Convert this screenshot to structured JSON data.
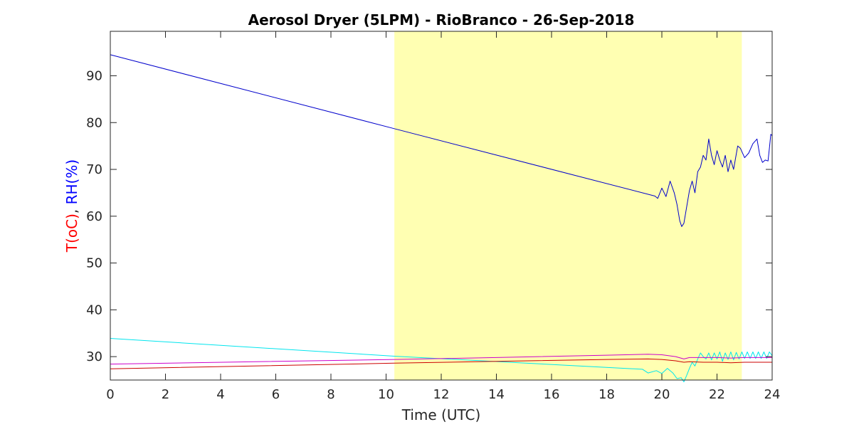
{
  "chart_data": {
    "type": "line",
    "title": "Aerosol Dryer (5LPM) - RioBranco - 26-Sep-2018",
    "xlabel": "Time (UTC)",
    "ylabel_parts": [
      {
        "text": "T(oC)",
        "color": "#ff0000"
      },
      {
        "text": ", ",
        "color": "#262626"
      },
      {
        "text": "RH(%)",
        "color": "#0000ff"
      }
    ],
    "xlim": [
      0,
      24
    ],
    "ylim": [
      25,
      99.5
    ],
    "xticks": [
      0,
      2,
      4,
      6,
      8,
      10,
      12,
      14,
      16,
      18,
      20,
      22,
      24
    ],
    "yticks": [
      30,
      40,
      50,
      60,
      70,
      80,
      90
    ],
    "grid": false,
    "highlight": {
      "x_start": 10.3,
      "x_end": 22.9,
      "color": "#ffffb2"
    },
    "series": [
      {
        "color": "#0000cc",
        "points": [
          [
            0.0,
            94.5
          ],
          [
            10.3,
            78.7
          ],
          [
            19.75,
            64.3
          ],
          [
            19.85,
            63.8
          ],
          [
            20.0,
            66.0
          ],
          [
            20.15,
            64.2
          ],
          [
            20.3,
            67.5
          ],
          [
            20.45,
            65.0
          ],
          [
            20.55,
            62.5
          ],
          [
            20.65,
            59.0
          ],
          [
            20.72,
            57.8
          ],
          [
            20.8,
            58.5
          ],
          [
            20.9,
            62.0
          ],
          [
            21.0,
            65.5
          ],
          [
            21.1,
            67.5
          ],
          [
            21.2,
            65.0
          ],
          [
            21.3,
            69.5
          ],
          [
            21.4,
            70.5
          ],
          [
            21.5,
            73.0
          ],
          [
            21.6,
            72.0
          ],
          [
            21.7,
            76.5
          ],
          [
            21.8,
            73.0
          ],
          [
            21.9,
            71.0
          ],
          [
            22.0,
            74.0
          ],
          [
            22.1,
            72.0
          ],
          [
            22.2,
            70.5
          ],
          [
            22.3,
            73.0
          ],
          [
            22.4,
            69.5
          ],
          [
            22.5,
            72.0
          ],
          [
            22.6,
            70.0
          ],
          [
            22.75,
            75.0
          ],
          [
            22.85,
            74.5
          ],
          [
            23.0,
            72.5
          ],
          [
            23.15,
            73.5
          ],
          [
            23.3,
            75.5
          ],
          [
            23.45,
            76.5
          ],
          [
            23.55,
            73.0
          ],
          [
            23.65,
            71.5
          ],
          [
            23.75,
            72.0
          ],
          [
            23.85,
            71.8
          ],
          [
            23.9,
            74.5
          ],
          [
            23.95,
            77.5
          ],
          [
            24.0,
            77.2
          ]
        ]
      },
      {
        "color": "#00e5ee",
        "points": [
          [
            0.0,
            33.9
          ],
          [
            10.3,
            30.1
          ],
          [
            19.3,
            27.3
          ],
          [
            19.5,
            26.5
          ],
          [
            19.8,
            27.0
          ],
          [
            20.0,
            26.4
          ],
          [
            20.2,
            27.5
          ],
          [
            20.4,
            26.5
          ],
          [
            20.55,
            25.3
          ],
          [
            20.7,
            25.5
          ],
          [
            20.8,
            24.6
          ],
          [
            20.9,
            26.0
          ],
          [
            21.0,
            27.5
          ],
          [
            21.1,
            28.8
          ],
          [
            21.2,
            28.0
          ],
          [
            21.3,
            29.5
          ],
          [
            21.4,
            30.8
          ],
          [
            21.5,
            30.0
          ],
          [
            21.6,
            29.5
          ],
          [
            21.7,
            30.8
          ],
          [
            21.8,
            29.3
          ],
          [
            21.9,
            30.8
          ],
          [
            22.0,
            29.5
          ],
          [
            22.1,
            31.0
          ],
          [
            22.2,
            29.0
          ],
          [
            22.3,
            30.8
          ],
          [
            22.4,
            29.4
          ],
          [
            22.5,
            31.0
          ],
          [
            22.6,
            29.3
          ],
          [
            22.7,
            30.9
          ],
          [
            22.8,
            29.5
          ],
          [
            22.9,
            31.0
          ],
          [
            23.0,
            29.6
          ],
          [
            23.1,
            31.0
          ],
          [
            23.2,
            29.6
          ],
          [
            23.3,
            31.0
          ],
          [
            23.4,
            29.6
          ],
          [
            23.5,
            31.0
          ],
          [
            23.6,
            29.6
          ],
          [
            23.7,
            31.0
          ],
          [
            23.8,
            29.6
          ],
          [
            23.9,
            31.0
          ],
          [
            24.0,
            30.2
          ]
        ]
      },
      {
        "color": "#cc00cc",
        "points": [
          [
            0.0,
            28.4
          ],
          [
            10.3,
            29.4
          ],
          [
            14.0,
            29.8
          ],
          [
            18.0,
            30.3
          ],
          [
            19.5,
            30.5
          ],
          [
            20.0,
            30.4
          ],
          [
            20.5,
            30.0
          ],
          [
            20.8,
            29.5
          ],
          [
            21.0,
            29.8
          ],
          [
            21.5,
            29.8
          ],
          [
            22.0,
            29.8
          ],
          [
            22.5,
            29.7
          ],
          [
            23.0,
            29.8
          ],
          [
            24.0,
            29.8
          ]
        ]
      },
      {
        "color": "#cc0000",
        "points": [
          [
            0.0,
            27.4
          ],
          [
            10.3,
            28.6
          ],
          [
            14.0,
            29.0
          ],
          [
            18.0,
            29.4
          ],
          [
            19.5,
            29.5
          ],
          [
            20.0,
            29.4
          ],
          [
            20.5,
            29.1
          ],
          [
            20.8,
            28.8
          ],
          [
            21.0,
            28.9
          ],
          [
            21.5,
            28.8
          ],
          [
            22.0,
            28.8
          ],
          [
            22.5,
            28.7
          ],
          [
            23.0,
            28.8
          ],
          [
            24.0,
            28.8
          ]
        ]
      }
    ]
  }
}
